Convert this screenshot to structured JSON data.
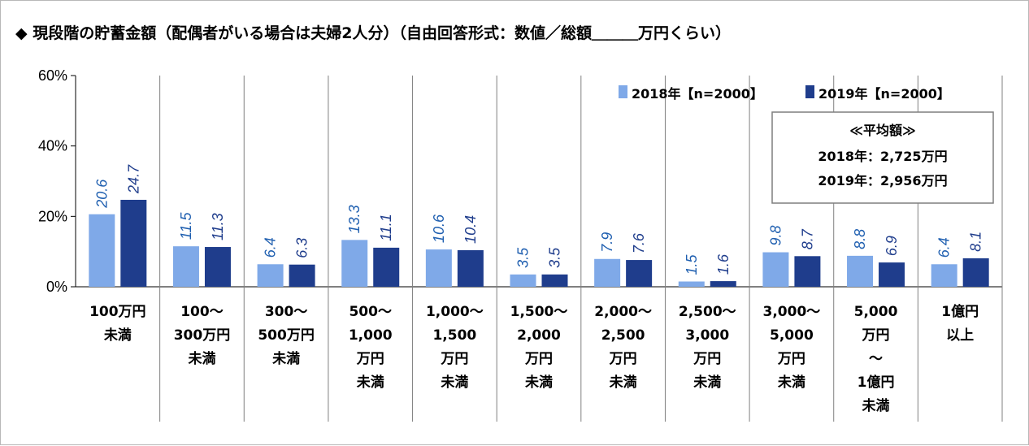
{
  "title": "◆ 現段階の貯蓄金額（配偶者がいる場合は夫婦2人分）（自由回答形式：数値／総額＿＿＿万円くらい）",
  "legend": [
    "2018年【n=2000】",
    "2019年【n=2000】"
  ],
  "average_box": {
    "heading": "≪平均額≫",
    "lines": [
      "2018年：2,725万円",
      "2019年：2,956万円"
    ]
  },
  "colors": {
    "series_2018": "#7fa9e8",
    "series_2019": "#1f3d8c",
    "label_2018": "#1f5fb0",
    "label_2019": "#1f3d8c",
    "grid": "#000000",
    "separator": "#808080"
  },
  "chart_data": {
    "type": "bar",
    "title": "◆ 現段階の貯蓄金額（配偶者がいる場合は夫婦2人分）（自由回答形式：数値／総額＿＿＿万円くらい）",
    "xlabel": "",
    "ylabel": "",
    "ylim": [
      0,
      60
    ],
    "y_ticks": [
      "0%",
      "20%",
      "40%",
      "60%"
    ],
    "y_tick_values": [
      0,
      20,
      40,
      60
    ],
    "grid": false,
    "legend_position": "top-right",
    "categories": [
      [
        "100万円",
        "未満"
      ],
      [
        "100～",
        "300万円",
        "未満"
      ],
      [
        "300～",
        "500万円",
        "未満"
      ],
      [
        "500～",
        "1,000",
        "万円",
        "未満"
      ],
      [
        "1,000～",
        "1,500",
        "万円",
        "未満"
      ],
      [
        "1,500～",
        "2,000",
        "万円",
        "未満"
      ],
      [
        "2,000～",
        "2,500",
        "万円",
        "未満"
      ],
      [
        "2,500～",
        "3,000",
        "万円",
        "未満"
      ],
      [
        "3,000～",
        "5,000",
        "万円",
        "未満"
      ],
      [
        "5,000",
        "万円",
        "～",
        "1億円",
        "未満"
      ],
      [
        "1億円",
        "以上"
      ]
    ],
    "series": [
      {
        "name": "2018年【n=2000】",
        "values": [
          20.6,
          11.5,
          6.4,
          13.3,
          10.6,
          3.5,
          7.9,
          1.5,
          9.8,
          8.8,
          6.4
        ]
      },
      {
        "name": "2019年【n=2000】",
        "values": [
          24.7,
          11.3,
          6.3,
          11.1,
          10.4,
          3.5,
          7.6,
          1.6,
          8.7,
          6.9,
          8.1
        ]
      }
    ]
  }
}
